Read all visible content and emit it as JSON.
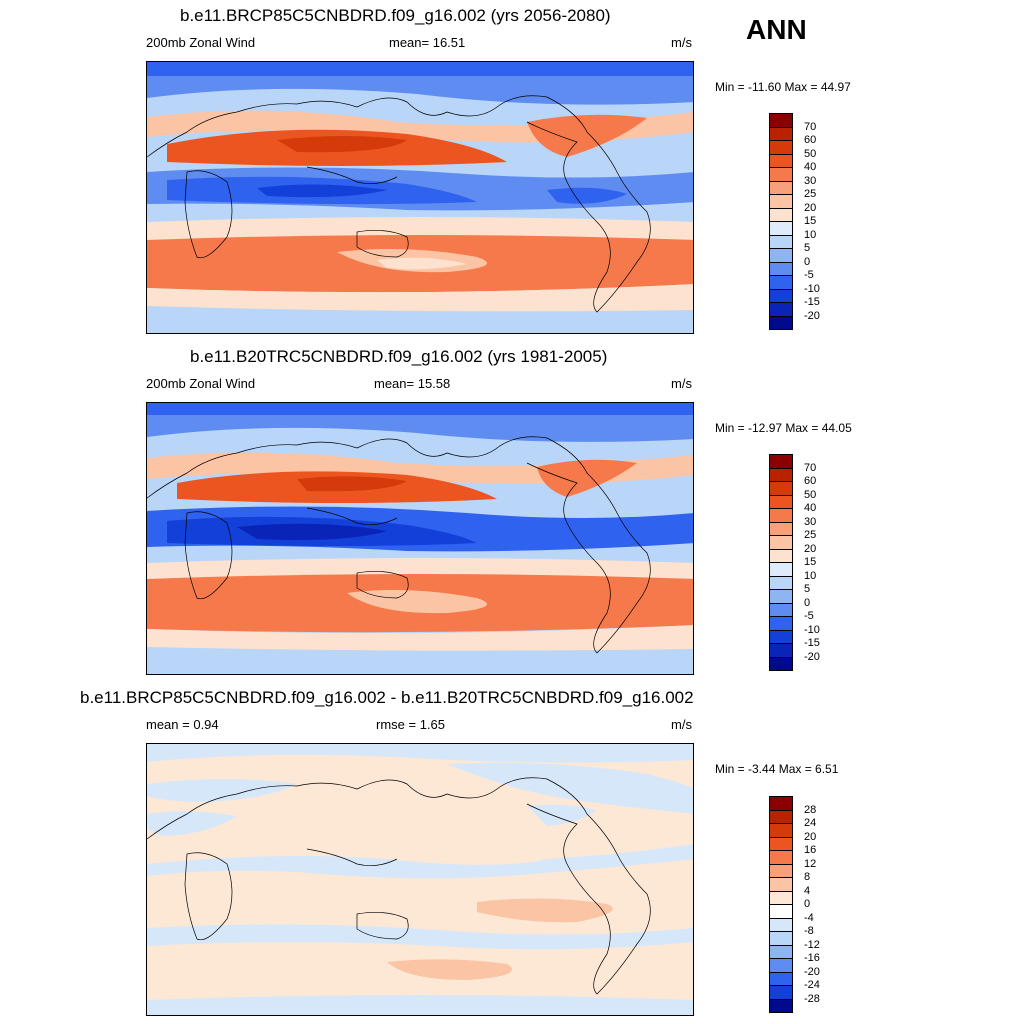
{
  "season": "ANN",
  "units": "m/s",
  "panels": [
    {
      "title": "b.e11.BRCP85C5CNBDRD.f09_g16.002 (yrs 2056-2080)",
      "left_label": "200mb Zonal Wind",
      "center_label": "mean=  16.51",
      "units": "m/s",
      "minmax": "Min = -11.60 Max =  44.97"
    },
    {
      "title": "b.e11.B20TRC5CNBDRD.f09_g16.002 (yrs 1981-2005)",
      "left_label": "200mb Zonal Wind",
      "center_label": "mean=  15.58",
      "units": "m/s",
      "minmax": "Min = -12.97 Max =  44.05"
    },
    {
      "title": "b.e11.BRCP85C5CNBDRD.f09_g16.002 - b.e11.B20TRC5CNBDRD.f09_g16.002",
      "left_label": "mean =   0.94",
      "center_label": "rmse =   1.65",
      "units": "m/s",
      "minmax": "Min =  -3.44 Max =   6.51"
    }
  ],
  "colorbar_abs": {
    "labels": [
      "70",
      "60",
      "50",
      "40",
      "30",
      "25",
      "20",
      "15",
      "10",
      "5",
      "0",
      "-5",
      "-10",
      "-15",
      "-20"
    ],
    "colors": [
      "#8b0000",
      "#b82200",
      "#d43a0a",
      "#ed5520",
      "#f5794a",
      "#f8a07a",
      "#fbc4a4",
      "#fde3cf",
      "#ddebfa",
      "#b9d5f7",
      "#8fb5f0",
      "#5f8cf0",
      "#2f62ef",
      "#1340d9",
      "#0a24b8",
      "#000a8c"
    ]
  },
  "colorbar_diff": {
    "labels": [
      "28",
      "24",
      "20",
      "16",
      "12",
      "8",
      "4",
      "0",
      "-4",
      "-8",
      "-12",
      "-16",
      "-20",
      "-24",
      "-28"
    ],
    "colors": [
      "#8b0000",
      "#b82200",
      "#d43a0a",
      "#ed5520",
      "#f5794a",
      "#f8a07a",
      "#fbc4a4",
      "#fde7d5",
      "#ffffff",
      "#d7e7fa",
      "#b9d5f7",
      "#8fb5f0",
      "#5f8cf0",
      "#2f62ef",
      "#1340d9",
      "#000a8c"
    ]
  }
}
